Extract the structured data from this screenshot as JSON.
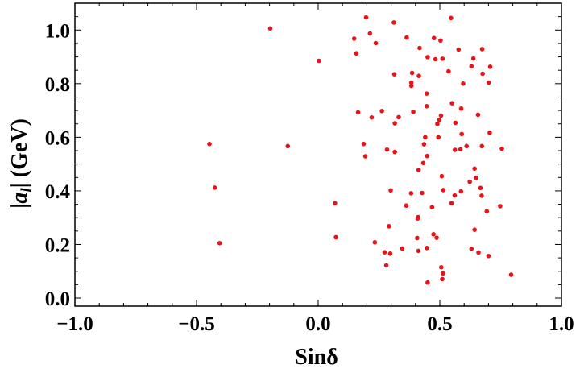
{
  "chart_data": {
    "type": "scatter",
    "title": "",
    "xlabel": "Sinδ",
    "ylabel": "|a_l| (GeV)",
    "xlim": [
      -1.0,
      1.0
    ],
    "ylim": [
      -0.03,
      1.1
    ],
    "grid": false,
    "legend": "none",
    "point_color": "#e8141a",
    "x_ticks": [
      {
        "value": -1.0,
        "label": "−1.0"
      },
      {
        "value": -0.5,
        "label": "−0.5"
      },
      {
        "value": 0.0,
        "label": "0.0"
      },
      {
        "value": 0.5,
        "label": "0.5"
      },
      {
        "value": 1.0,
        "label": "1.0"
      }
    ],
    "y_ticks": [
      {
        "value": 0.0,
        "label": "0.0"
      },
      {
        "value": 0.2,
        "label": "0.2"
      },
      {
        "value": 0.4,
        "label": "0.4"
      },
      {
        "value": 0.6,
        "label": "0.6"
      },
      {
        "value": 0.8,
        "label": "0.8"
      },
      {
        "value": 1.0,
        "label": "1.0"
      }
    ],
    "series": [
      {
        "points": [
          [
            -0.197,
            1.006
          ],
          [
            0.003,
            0.885
          ],
          [
            -0.447,
            0.575
          ],
          [
            -0.125,
            0.567
          ],
          [
            -0.425,
            0.412
          ],
          [
            -0.405,
            0.205
          ],
          [
            0.148,
            0.968
          ],
          [
            0.157,
            0.913
          ],
          [
            0.197,
            1.047
          ],
          [
            0.213,
            0.987
          ],
          [
            0.237,
            0.951
          ],
          [
            0.311,
            1.028
          ],
          [
            0.364,
            0.972
          ],
          [
            0.417,
            0.933
          ],
          [
            0.476,
            0.97
          ],
          [
            0.546,
            1.045
          ],
          [
            0.503,
            0.961
          ],
          [
            0.45,
            0.899
          ],
          [
            0.482,
            0.891
          ],
          [
            0.511,
            0.893
          ],
          [
            0.577,
            0.927
          ],
          [
            0.638,
            0.894
          ],
          [
            0.674,
            0.929
          ],
          [
            0.707,
            0.863
          ],
          [
            0.676,
            0.837
          ],
          [
            0.701,
            0.804
          ],
          [
            0.63,
            0.865
          ],
          [
            0.596,
            0.8
          ],
          [
            0.536,
            0.846
          ],
          [
            0.414,
            0.829
          ],
          [
            0.386,
            0.84
          ],
          [
            0.313,
            0.835
          ],
          [
            0.383,
            0.804
          ],
          [
            0.383,
            0.792
          ],
          [
            0.446,
            0.763
          ],
          [
            0.446,
            0.716
          ],
          [
            0.55,
            0.727
          ],
          [
            0.588,
            0.707
          ],
          [
            0.164,
            0.693
          ],
          [
            0.22,
            0.674
          ],
          [
            0.262,
            0.698
          ],
          [
            0.315,
            0.652
          ],
          [
            0.331,
            0.675
          ],
          [
            0.391,
            0.695
          ],
          [
            0.505,
            0.681
          ],
          [
            0.498,
            0.665
          ],
          [
            0.49,
            0.65
          ],
          [
            0.564,
            0.654
          ],
          [
            0.657,
            0.684
          ],
          [
            0.59,
            0.612
          ],
          [
            0.705,
            0.617
          ],
          [
            0.44,
            0.6
          ],
          [
            0.494,
            0.6
          ],
          [
            0.187,
            0.575
          ],
          [
            0.194,
            0.529
          ],
          [
            0.283,
            0.554
          ],
          [
            0.315,
            0.545
          ],
          [
            0.435,
            0.574
          ],
          [
            0.562,
            0.553
          ],
          [
            0.585,
            0.555
          ],
          [
            0.61,
            0.567
          ],
          [
            0.673,
            0.567
          ],
          [
            0.755,
            0.557
          ],
          [
            0.448,
            0.53
          ],
          [
            0.432,
            0.504
          ],
          [
            0.413,
            0.478
          ],
          [
            0.643,
            0.483
          ],
          [
            0.508,
            0.455
          ],
          [
            0.623,
            0.434
          ],
          [
            0.649,
            0.449
          ],
          [
            0.587,
            0.398
          ],
          [
            0.667,
            0.411
          ],
          [
            0.298,
            0.402
          ],
          [
            0.382,
            0.391
          ],
          [
            0.427,
            0.392
          ],
          [
            0.514,
            0.403
          ],
          [
            0.561,
            0.383
          ],
          [
            0.672,
            0.382
          ],
          [
            0.548,
            0.354
          ],
          [
            0.069,
            0.354
          ],
          [
            0.362,
            0.345
          ],
          [
            0.468,
            0.339
          ],
          [
            0.411,
            0.302
          ],
          [
            0.409,
            0.297
          ],
          [
            0.693,
            0.324
          ],
          [
            0.748,
            0.343
          ],
          [
            0.291,
            0.268
          ],
          [
            0.407,
            0.224
          ],
          [
            0.474,
            0.238
          ],
          [
            0.487,
            0.225
          ],
          [
            0.643,
            0.255
          ],
          [
            0.073,
            0.227
          ],
          [
            0.233,
            0.208
          ],
          [
            0.273,
            0.171
          ],
          [
            0.296,
            0.166
          ],
          [
            0.346,
            0.185
          ],
          [
            0.412,
            0.176
          ],
          [
            0.447,
            0.187
          ],
          [
            0.63,
            0.184
          ],
          [
            0.659,
            0.17
          ],
          [
            0.7,
            0.157
          ],
          [
            0.28,
            0.122
          ],
          [
            0.506,
            0.115
          ],
          [
            0.513,
            0.092
          ],
          [
            0.51,
            0.071
          ],
          [
            0.45,
            0.058
          ],
          [
            0.793,
            0.087
          ]
        ]
      }
    ]
  }
}
